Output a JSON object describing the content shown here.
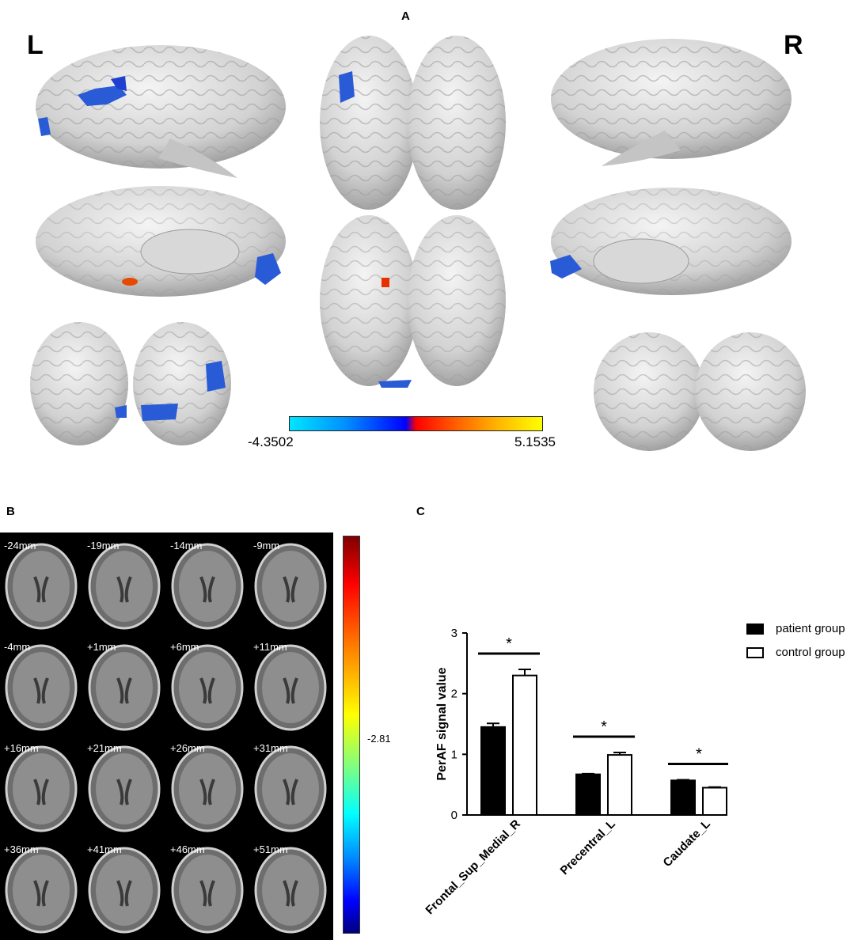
{
  "panel_labels": {
    "a": "A",
    "b": "B",
    "c": "C"
  },
  "side_labels": {
    "left": "L",
    "right": "R"
  },
  "colorbar_a": {
    "min_label": "-4.3502",
    "max_label": "5.1535"
  },
  "colorbar_b": {
    "tick_label": "-2.81"
  },
  "slices": [
    {
      "label": "-24mm"
    },
    {
      "label": "-19mm"
    },
    {
      "label": "-14mm"
    },
    {
      "label": "-9mm"
    },
    {
      "label": "-4mm"
    },
    {
      "label": "+1mm"
    },
    {
      "label": "+6mm"
    },
    {
      "label": "+11mm"
    },
    {
      "label": "+16mm"
    },
    {
      "label": "+21mm"
    },
    {
      "label": "+26mm"
    },
    {
      "label": "+31mm"
    },
    {
      "label": "+36mm"
    },
    {
      "label": "+41mm"
    },
    {
      "label": "+46mm"
    },
    {
      "label": "+51mm"
    }
  ],
  "chart_data": {
    "type": "bar",
    "ylabel": "PerAF signal value",
    "xlabel": "",
    "ylim": [
      0,
      3
    ],
    "yticks": [
      "0",
      "1",
      "2",
      "3"
    ],
    "categories": [
      "Frontal_Sup_Medial_R",
      "Precentral_L",
      "Caudate_L"
    ],
    "series": [
      {
        "name": "patient group",
        "values": [
          1.45,
          0.67,
          0.57
        ],
        "errors": [
          0.06,
          0.01,
          0.01
        ],
        "fill": "#000000"
      },
      {
        "name": "control group",
        "values": [
          2.3,
          0.99,
          0.45
        ],
        "errors": [
          0.1,
          0.04,
          0.01
        ],
        "fill": "#ffffff"
      }
    ],
    "significance": [
      "*",
      "*",
      "*"
    ],
    "legend_position": "top-right"
  }
}
